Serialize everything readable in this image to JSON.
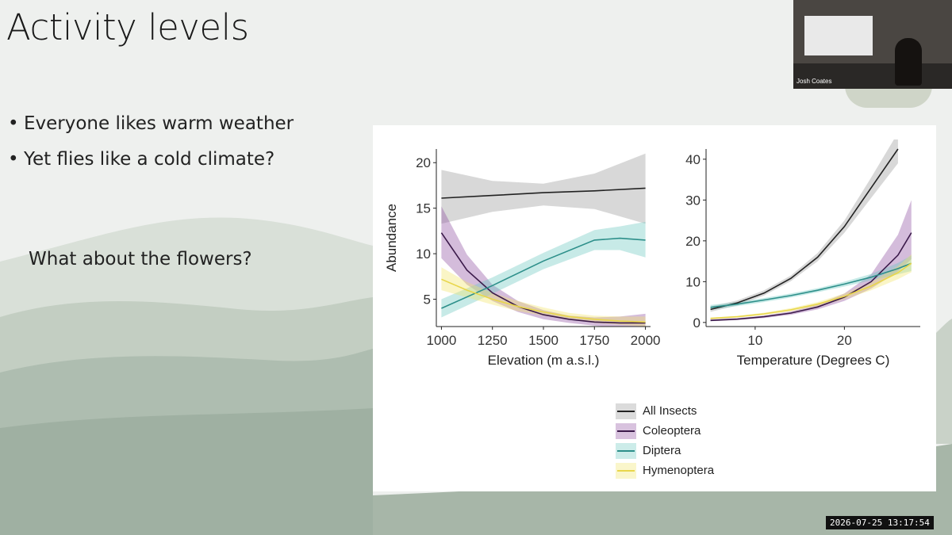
{
  "slide": {
    "title": "Activity levels",
    "bullets": [
      "Everyone likes warm weather",
      "Yet flies like a cold climate?"
    ],
    "question": "What about the flowers?",
    "bullet_glyph": "•"
  },
  "webcam": {
    "name": "Josh Coates"
  },
  "timestamp": "2026-07-25 13:17:54",
  "legend": [
    {
      "name": "All Insects",
      "color": "#222222",
      "band": "#999999"
    },
    {
      "name": "Coleoptera",
      "color": "#3b1a4a",
      "band": "#8e4fa0"
    },
    {
      "name": "Diptera",
      "color": "#2d8f8a",
      "band": "#6dc8bf"
    },
    {
      "name": "Hymenoptera",
      "color": "#e8d64a",
      "band": "#f2e46a"
    }
  ],
  "chart_data": [
    {
      "type": "line",
      "xlabel": "Elevation (m a.s.l.)",
      "ylabel": "Abundance",
      "xlim": [
        975,
        2025
      ],
      "ylim": [
        2,
        21.5
      ],
      "xticks": [
        1000,
        1250,
        1500,
        1750,
        2000
      ],
      "yticks": [
        5,
        10,
        15,
        20
      ],
      "series": [
        {
          "name": "All Insects",
          "x": [
            1000,
            1250,
            1500,
            1750,
            2000
          ],
          "y": [
            16.1,
            16.4,
            16.7,
            16.9,
            17.2
          ],
          "lower": [
            13.3,
            14.6,
            15.3,
            14.9,
            13.3
          ],
          "upper": [
            19.2,
            18.0,
            17.7,
            18.8,
            21.0
          ]
        },
        {
          "name": "Coleoptera",
          "x": [
            1000,
            1125,
            1250,
            1375,
            1500,
            1625,
            1750,
            1875,
            2000
          ],
          "y": [
            12.3,
            8.2,
            5.7,
            4.2,
            3.3,
            2.8,
            2.5,
            2.4,
            2.4
          ],
          "lower": [
            9.5,
            6.6,
            4.8,
            3.6,
            2.8,
            2.4,
            2.1,
            1.9,
            1.8
          ],
          "upper": [
            15.2,
            9.9,
            6.6,
            4.8,
            3.8,
            3.2,
            3.0,
            3.1,
            3.4
          ]
        },
        {
          "name": "Diptera",
          "x": [
            1000,
            1250,
            1500,
            1750,
            1875,
            2000
          ],
          "y": [
            4.0,
            6.5,
            9.2,
            11.5,
            11.7,
            11.5
          ],
          "lower": [
            3.0,
            5.6,
            8.3,
            10.4,
            10.4,
            9.6
          ],
          "upper": [
            5.0,
            7.4,
            10.1,
            12.6,
            13.0,
            13.5
          ]
        },
        {
          "name": "Hymenoptera",
          "x": [
            1000,
            1125,
            1250,
            1375,
            1500,
            1625,
            1750,
            1875,
            2000
          ],
          "y": [
            7.2,
            6.0,
            5.0,
            4.2,
            3.6,
            3.1,
            2.8,
            2.6,
            2.5
          ],
          "lower": [
            6.0,
            5.2,
            4.4,
            3.7,
            3.2,
            2.8,
            2.4,
            2.2,
            2.0
          ],
          "upper": [
            8.5,
            6.9,
            5.7,
            4.8,
            4.1,
            3.5,
            3.2,
            3.1,
            3.1
          ]
        }
      ]
    },
    {
      "type": "line",
      "xlabel": "Temperature (Degrees C)",
      "ylabel": "",
      "xlim": [
        4.5,
        28.5
      ],
      "ylim": [
        -1,
        42.5
      ],
      "xticks": [
        10,
        20
      ],
      "yticks": [
        0,
        10,
        20,
        30,
        40
      ],
      "series": [
        {
          "name": "All Insects",
          "x": [
            5,
            8,
            11,
            14,
            17,
            20,
            23,
            26
          ],
          "y": [
            3.2,
            4.8,
            7.2,
            10.8,
            16.0,
            23.5,
            33.0,
            42.5
          ],
          "lower": [
            2.6,
            4.2,
            6.6,
            10.1,
            15.0,
            22.0,
            30.5,
            39.0
          ],
          "upper": [
            3.9,
            5.4,
            7.9,
            11.5,
            17.0,
            25.0,
            35.5,
            46.5
          ]
        },
        {
          "name": "Coleoptera",
          "x": [
            5,
            8,
            11,
            14,
            17,
            20,
            23,
            26,
            27.5
          ],
          "y": [
            0.5,
            0.8,
            1.4,
            2.3,
            3.8,
            6.2,
            10.0,
            16.5,
            22.0
          ],
          "lower": [
            0.3,
            0.6,
            1.1,
            1.9,
            3.2,
            5.3,
            8.3,
            12.5,
            15.5
          ],
          "upper": [
            0.8,
            1.1,
            1.7,
            2.7,
            4.4,
            7.1,
            11.8,
            21.5,
            30.0
          ]
        },
        {
          "name": "Diptera",
          "x": [
            5,
            8,
            11,
            14,
            17,
            20,
            23,
            26,
            27.5
          ],
          "y": [
            3.7,
            4.5,
            5.5,
            6.6,
            7.9,
            9.4,
            11.1,
            13.2,
            14.5
          ],
          "lower": [
            3.1,
            4.0,
            5.0,
            6.1,
            7.4,
            8.8,
            10.3,
            11.8,
            12.6
          ],
          "upper": [
            4.3,
            5.0,
            6.0,
            7.1,
            8.4,
            10.0,
            11.9,
            14.6,
            16.4
          ]
        },
        {
          "name": "Hymenoptera",
          "x": [
            5,
            8,
            11,
            14,
            17,
            20,
            23,
            26,
            27.5
          ],
          "y": [
            1.0,
            1.4,
            2.1,
            3.1,
            4.5,
            6.4,
            8.9,
            12.2,
            14.5
          ],
          "lower": [
            0.8,
            1.2,
            1.8,
            2.7,
            4.0,
            5.7,
            7.9,
            10.6,
            12.3
          ],
          "upper": [
            1.2,
            1.6,
            2.4,
            3.5,
            5.0,
            7.1,
            9.9,
            13.8,
            16.7
          ]
        }
      ]
    }
  ]
}
